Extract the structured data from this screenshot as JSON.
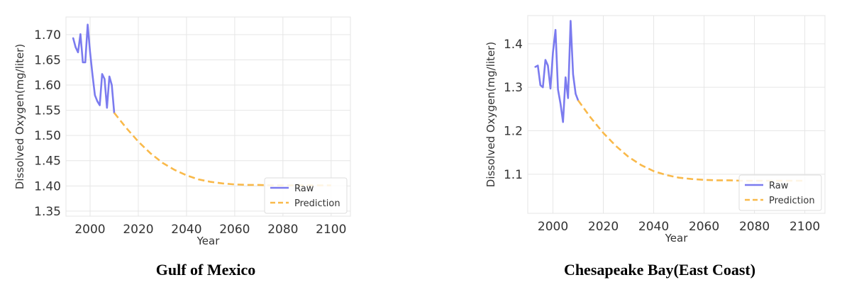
{
  "chart_data": [
    {
      "type": "line",
      "caption": "Gulf of Mexico",
      "xlabel": "Year",
      "ylabel": "Dissolved Oxygen(mg/liter)",
      "xlim": [
        1990,
        2108
      ],
      "ylim": [
        1.34,
        1.735
      ],
      "xticks": [
        2000,
        2020,
        2040,
        2060,
        2080,
        2100
      ],
      "yticks": [
        1.35,
        1.4,
        1.45,
        1.5,
        1.55,
        1.6,
        1.65,
        1.7
      ],
      "ytick_labels": [
        "1.35",
        "1.40",
        "1.45",
        "1.50",
        "1.55",
        "1.60",
        "1.65",
        "1.70"
      ],
      "grid": true,
      "legend": "bottom-right",
      "series": [
        {
          "name": "Raw",
          "color": "#7b7bef",
          "style": "solid",
          "x": [
            1993,
            1994,
            1995,
            1996,
            1997,
            1998,
            1999,
            2000,
            2001,
            2002,
            2003,
            2004,
            2005,
            2006,
            2007,
            2008,
            2009,
            2010
          ],
          "y": [
            1.693,
            1.675,
            1.665,
            1.701,
            1.645,
            1.645,
            1.72,
            1.665,
            1.62,
            1.58,
            1.568,
            1.56,
            1.622,
            1.612,
            1.555,
            1.617,
            1.6,
            1.545
          ]
        },
        {
          "name": "Prediction",
          "color": "#f9b94a",
          "style": "dashed",
          "x": [
            2010,
            2015,
            2020,
            2025,
            2030,
            2035,
            2040,
            2045,
            2050,
            2055,
            2060,
            2065,
            2070,
            2075,
            2080,
            2085,
            2090,
            2095,
            2100
          ],
          "y": [
            1.545,
            1.515,
            1.488,
            1.465,
            1.446,
            1.432,
            1.421,
            1.413,
            1.408,
            1.405,
            1.403,
            1.402,
            1.402,
            1.401,
            1.401,
            1.401,
            1.401,
            1.401,
            1.401
          ]
        }
      ]
    },
    {
      "type": "line",
      "caption": "Chesapeake Bay(East Coast)",
      "xlabel": "Year",
      "ylabel": "Dissolved Oxygen(mg/liter)",
      "xlim": [
        1990,
        2108
      ],
      "ylim": [
        1.01,
        1.465
      ],
      "xticks": [
        2000,
        2020,
        2040,
        2060,
        2080,
        2100
      ],
      "yticks": [
        1.1,
        1.2,
        1.3,
        1.4
      ],
      "ytick_labels": [
        "1.1",
        "1.2",
        "1.3",
        "1.4"
      ],
      "grid": true,
      "legend": "bottom-right",
      "series": [
        {
          "name": "Raw",
          "color": "#7b7bef",
          "style": "solid",
          "x": [
            1993,
            1994,
            1995,
            1996,
            1997,
            1998,
            1999,
            2000,
            2001,
            2002,
            2003,
            2004,
            2005,
            2006,
            2007,
            2008,
            2009,
            2010
          ],
          "y": [
            1.347,
            1.35,
            1.305,
            1.3,
            1.363,
            1.35,
            1.297,
            1.38,
            1.432,
            1.295,
            1.262,
            1.22,
            1.323,
            1.275,
            1.453,
            1.33,
            1.285,
            1.27
          ]
        },
        {
          "name": "Prediction",
          "color": "#f9b94a",
          "style": "dashed",
          "x": [
            2010,
            2015,
            2020,
            2025,
            2030,
            2035,
            2040,
            2045,
            2050,
            2055,
            2060,
            2065,
            2070,
            2075,
            2080,
            2085,
            2090,
            2095,
            2100
          ],
          "y": [
            1.27,
            1.23,
            1.195,
            1.165,
            1.14,
            1.121,
            1.107,
            1.098,
            1.092,
            1.089,
            1.087,
            1.086,
            1.086,
            1.085,
            1.085,
            1.085,
            1.085,
            1.085,
            1.085
          ]
        }
      ]
    }
  ]
}
